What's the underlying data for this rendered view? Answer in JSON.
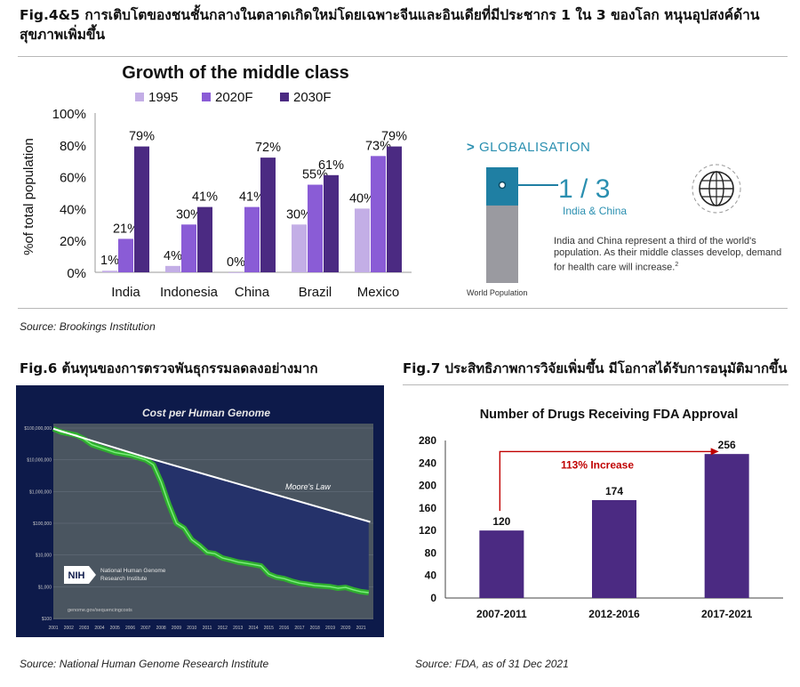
{
  "header": {
    "title": "Fig.4&5 การเติบโตของชนชั้นกลางในตลาดเกิดใหม่โดยเฉพาะจีนและอินเดียที่มีประชากร 1 ใน 3 ของโลก หนุนอุปสงค์ด้านสุขภาพเพิ่มขึ้น"
  },
  "source_top": "Source: Brookings Institution",
  "fig6": {
    "title": "Fig.6 ต้นทุนของการตรวจพันธุกรรมลดลงอย่างมาก",
    "source": "Source: National Human Genome Research Institute"
  },
  "fig7": {
    "title": "Fig.7 ประสิทธิภาพการวิจัยเพิ่มขึ้น มีโอกาสได้รับการอนุมัติมากขึ้น",
    "source": "Source: FDA, as of 31 Dec 2021"
  },
  "globalisation": {
    "heading": "GLOBALISATION",
    "fraction": "1 / 3",
    "subtitle": "India & China",
    "text": "India and China represent a third of the world's population. As their middle classes develop, demand for health care will increase.",
    "footnote": "2",
    "bar_label": "World Population",
    "share": 0.33,
    "colors": {
      "accent": "#1f7fa3",
      "gray": "#9a9aa0"
    },
    "icon": "globe-icon"
  },
  "chart_data": [
    {
      "type": "bar",
      "title": "Growth of the middle class",
      "ylabel": "%of total population",
      "ylim": [
        0,
        100
      ],
      "yticks": [
        "0%",
        "20%",
        "40%",
        "60%",
        "80%",
        "100%"
      ],
      "categories": [
        "India",
        "Indonesia",
        "China",
        "Brazil",
        "Mexico"
      ],
      "series": [
        {
          "name": "1995",
          "values": [
            1,
            4,
            0,
            30,
            40
          ],
          "labels": [
            "1%",
            "4%",
            "0%",
            "30%",
            "40%"
          ],
          "color": "#c3aee6"
        },
        {
          "name": "2020F",
          "values": [
            21,
            30,
            41,
            55,
            73
          ],
          "labels": [
            "21%",
            "30%",
            "41%",
            "55%",
            "73%"
          ],
          "color": "#8a5cd6"
        },
        {
          "name": "2030F",
          "values": [
            79,
            41,
            72,
            61,
            79
          ],
          "labels": [
            "79%",
            "41%",
            "72%",
            "61%",
            "79%"
          ],
          "color": "#4b2a82"
        }
      ],
      "legend": "top"
    },
    {
      "type": "line",
      "title": "Cost per Human Genome",
      "yscale": "log",
      "ylim": [
        100,
        100000000
      ],
      "yticks": [
        "$100,000,000",
        "$10,000,000",
        "$1,000,000",
        "$100,000",
        "$10,000",
        "$1,000",
        "$100"
      ],
      "x": [
        "2001",
        "2002",
        "2003",
        "2004",
        "2005",
        "2006",
        "2007",
        "2008",
        "2009",
        "2010",
        "2011",
        "2012",
        "2013",
        "2014",
        "2015",
        "2016",
        "2017",
        "2018",
        "2019",
        "2020",
        "2021"
      ],
      "series": [
        {
          "name": "Moore's Law",
          "color": "#ffffff",
          "points": [
            [
              2001,
              95000000
            ],
            [
              2007,
              12000000
            ],
            [
              2021.6,
              110000
            ]
          ]
        },
        {
          "name": "Cost per Genome",
          "color": "#3fc93f",
          "points": [
            [
              2001,
              95000000
            ],
            [
              2001.5,
              75000000
            ],
            [
              2002.5,
              60000000
            ],
            [
              2003,
              45000000
            ],
            [
              2003.5,
              30000000
            ],
            [
              2004,
              25000000
            ],
            [
              2005,
              17000000
            ],
            [
              2006,
              14000000
            ],
            [
              2007,
              10000000
            ],
            [
              2007.5,
              7000000
            ],
            [
              2008,
              2000000
            ],
            [
              2008.5,
              400000
            ],
            [
              2009,
              100000
            ],
            [
              2009.5,
              70000
            ],
            [
              2010,
              30000
            ],
            [
              2010.5,
              20000
            ],
            [
              2011,
              12000
            ],
            [
              2011.5,
              11000
            ],
            [
              2012,
              8000
            ],
            [
              2012.5,
              7000
            ],
            [
              2013,
              6000
            ],
            [
              2013.5,
              5500
            ],
            [
              2014,
              5000
            ],
            [
              2014.5,
              4500
            ],
            [
              2015,
              2500
            ],
            [
              2015.5,
              2000
            ],
            [
              2016,
              1800
            ],
            [
              2016.5,
              1500
            ],
            [
              2017,
              1300
            ],
            [
              2017.5,
              1200
            ],
            [
              2018,
              1100
            ],
            [
              2018.5,
              1050
            ],
            [
              2019,
              1000
            ],
            [
              2019.5,
              900
            ],
            [
              2020,
              950
            ],
            [
              2020.5,
              800
            ],
            [
              2021,
              700
            ],
            [
              2021.5,
              650
            ]
          ]
        }
      ],
      "annotation": "Moore's Law",
      "logo_text": [
        "National Human Genome",
        "Research Institute"
      ],
      "logo_mark": "NIH",
      "footer_text": "genome.gov/sequencingcosts"
    },
    {
      "type": "bar",
      "title": "Number of Drugs Receiving FDA Approval",
      "categories": [
        "2007-2011",
        "2012-2016",
        "2017-2021"
      ],
      "values": [
        120,
        174,
        256
      ],
      "ylim": [
        0,
        280
      ],
      "yticks": [
        "0",
        "40",
        "80",
        "120",
        "160",
        "200",
        "240",
        "280"
      ],
      "color": "#4b2a82",
      "annotation": {
        "text": "113% Increase",
        "color": "#c00000"
      }
    }
  ]
}
